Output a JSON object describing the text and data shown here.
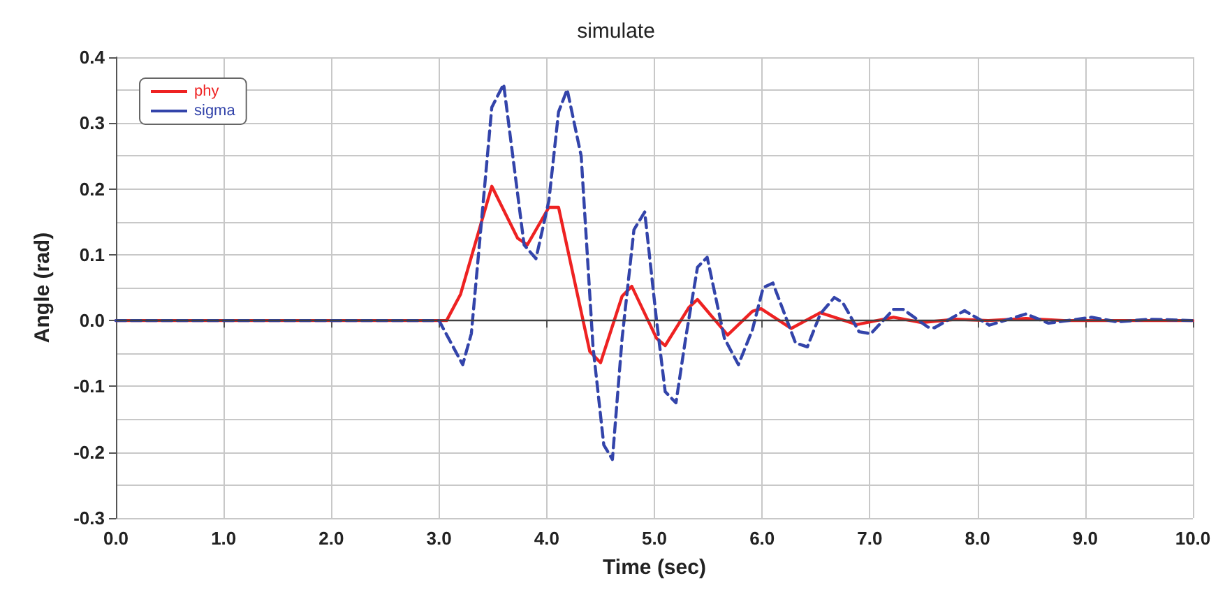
{
  "chart_data": {
    "type": "line",
    "title": "simulate",
    "xlabel": "Time (sec)",
    "ylabel": "Angle (rad)",
    "xlim": [
      0,
      10
    ],
    "ylim": [
      -0.3,
      0.4
    ],
    "xticks": [
      {
        "value": 0,
        "label": "0.0"
      },
      {
        "value": 1,
        "label": "1.0"
      },
      {
        "value": 2,
        "label": "2.0"
      },
      {
        "value": 3,
        "label": "3.0"
      },
      {
        "value": 4,
        "label": "4.0"
      },
      {
        "value": 5,
        "label": "5.0"
      },
      {
        "value": 6,
        "label": "6.0"
      },
      {
        "value": 7,
        "label": "7.0"
      },
      {
        "value": 8,
        "label": "8.0"
      },
      {
        "value": 9,
        "label": "9.0"
      },
      {
        "value": 10,
        "label": "10.0"
      }
    ],
    "yticks": [
      -0.3,
      -0.2,
      -0.1,
      {
        "value": 0,
        "label": "0.0"
      },
      0.1,
      0.2,
      0.3,
      0.4
    ],
    "grid": true,
    "legend": "top left",
    "marker": "none",
    "ref_lines": [
      {
        "axis": "y",
        "value": 0,
        "color": "#404040",
        "line_style": "solid"
      }
    ],
    "series": [
      {
        "name": "phy",
        "color": "#ee2222",
        "line_style": "solid",
        "x": [
          0,
          3.0,
          3.07,
          3.2,
          3.49,
          3.73,
          3.82,
          4.02,
          4.11,
          4.4,
          4.5,
          4.7,
          4.79,
          5.02,
          5.1,
          5.32,
          5.4,
          5.68,
          5.91,
          5.99,
          6.27,
          6.54,
          6.88,
          7.22,
          7.48,
          7.8,
          8.1,
          8.45,
          8.8,
          10
        ],
        "values": [
          0,
          0,
          0,
          0.04,
          0.204,
          0.125,
          0.115,
          0.172,
          0.172,
          -0.047,
          -0.064,
          0.037,
          0.052,
          -0.027,
          -0.038,
          0.02,
          0.032,
          -0.022,
          0.014,
          0.018,
          -0.012,
          0.012,
          -0.006,
          0.005,
          -0.003,
          0.002,
          0,
          0.003,
          0,
          0
        ]
      },
      {
        "name": "sigma",
        "color": "#3344aa",
        "line_style": "dashed",
        "x": [
          0,
          3.0,
          3.22,
          3.3,
          3.49,
          3.6,
          3.79,
          3.9,
          4.02,
          4.11,
          4.19,
          4.32,
          4.43,
          4.53,
          4.61,
          4.7,
          4.81,
          4.91,
          5.02,
          5.1,
          5.2,
          5.29,
          5.4,
          5.49,
          5.65,
          5.78,
          5.91,
          6.01,
          6.1,
          6.31,
          6.42,
          6.54,
          6.67,
          6.75,
          6.9,
          7.01,
          7.22,
          7.31,
          7.54,
          7.6,
          7.88,
          8.11,
          8.45,
          8.66,
          9.06,
          9.3,
          9.59,
          10
        ],
        "values": [
          0,
          0,
          -0.067,
          -0.02,
          0.324,
          0.359,
          0.115,
          0.094,
          0.182,
          0.317,
          0.351,
          0.25,
          -0.04,
          -0.189,
          -0.211,
          -0.027,
          0.138,
          0.165,
          0,
          -0.108,
          -0.125,
          -0.027,
          0.081,
          0.096,
          -0.027,
          -0.067,
          -0.014,
          0.05,
          0.057,
          -0.034,
          -0.04,
          0.01,
          0.035,
          0.027,
          -0.017,
          -0.02,
          0.017,
          0.017,
          -0.01,
          -0.011,
          0.015,
          -0.007,
          0.01,
          -0.004,
          0.005,
          -0.002,
          0.002,
          0
        ]
      }
    ]
  }
}
